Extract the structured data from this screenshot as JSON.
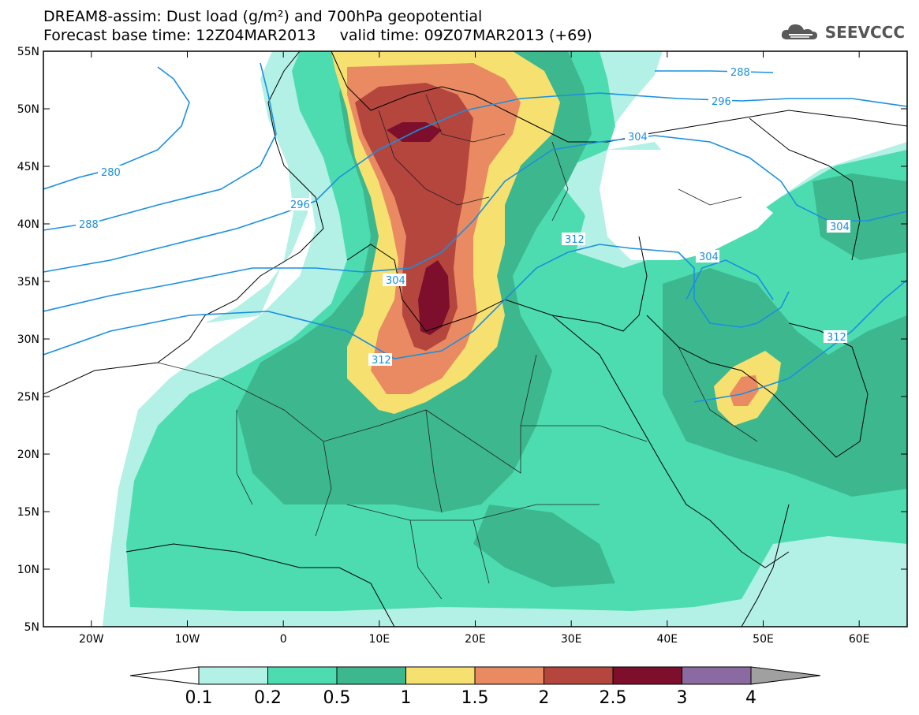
{
  "title": {
    "line1": "DREAM8-assim: Dust load (g/m²) and 700hPa geopotential",
    "line2_base": "Forecast base time: 12Z04MAR2013",
    "line2_valid": "valid time: 09Z07MAR2013 (+69)"
  },
  "logo": {
    "text": "SEEVCCC",
    "icon": "cloud-logo-icon"
  },
  "axes": {
    "lat_labels": [
      "55N",
      "50N",
      "45N",
      "40N",
      "35N",
      "30N",
      "25N",
      "20N",
      "15N",
      "10N",
      "5N"
    ],
    "lat_values": [
      55,
      50,
      45,
      40,
      35,
      30,
      25,
      20,
      15,
      10,
      5
    ],
    "lon_labels": [
      "20W",
      "10W",
      "0",
      "10E",
      "20E",
      "30E",
      "40E",
      "50E",
      "60E"
    ],
    "lon_values": [
      -20,
      -10,
      0,
      10,
      20,
      30,
      40,
      50,
      60
    ],
    "lon_range": [
      -25,
      65
    ],
    "lat_range": [
      5,
      55
    ]
  },
  "colorbar": {
    "labels": [
      "0.1",
      "0.2",
      "0.5",
      "1",
      "1.5",
      "2",
      "2.5",
      "3",
      "4"
    ],
    "colors": [
      "#b3f0e6",
      "#4ddcb0",
      "#3db88e",
      "#f5e070",
      "#e98a62",
      "#b5463e",
      "#7d0f2c",
      "#8a6aa0"
    ],
    "under_color": "#ffffff",
    "over_color": "#a0a0a0"
  },
  "contour_labels": [
    "280",
    "288",
    "296",
    "304",
    "312",
    "288",
    "296",
    "304",
    "312",
    "304",
    "304",
    "312"
  ],
  "legend_colors": {
    "land_line": "#000000",
    "contour": "#1a8fe0"
  }
}
